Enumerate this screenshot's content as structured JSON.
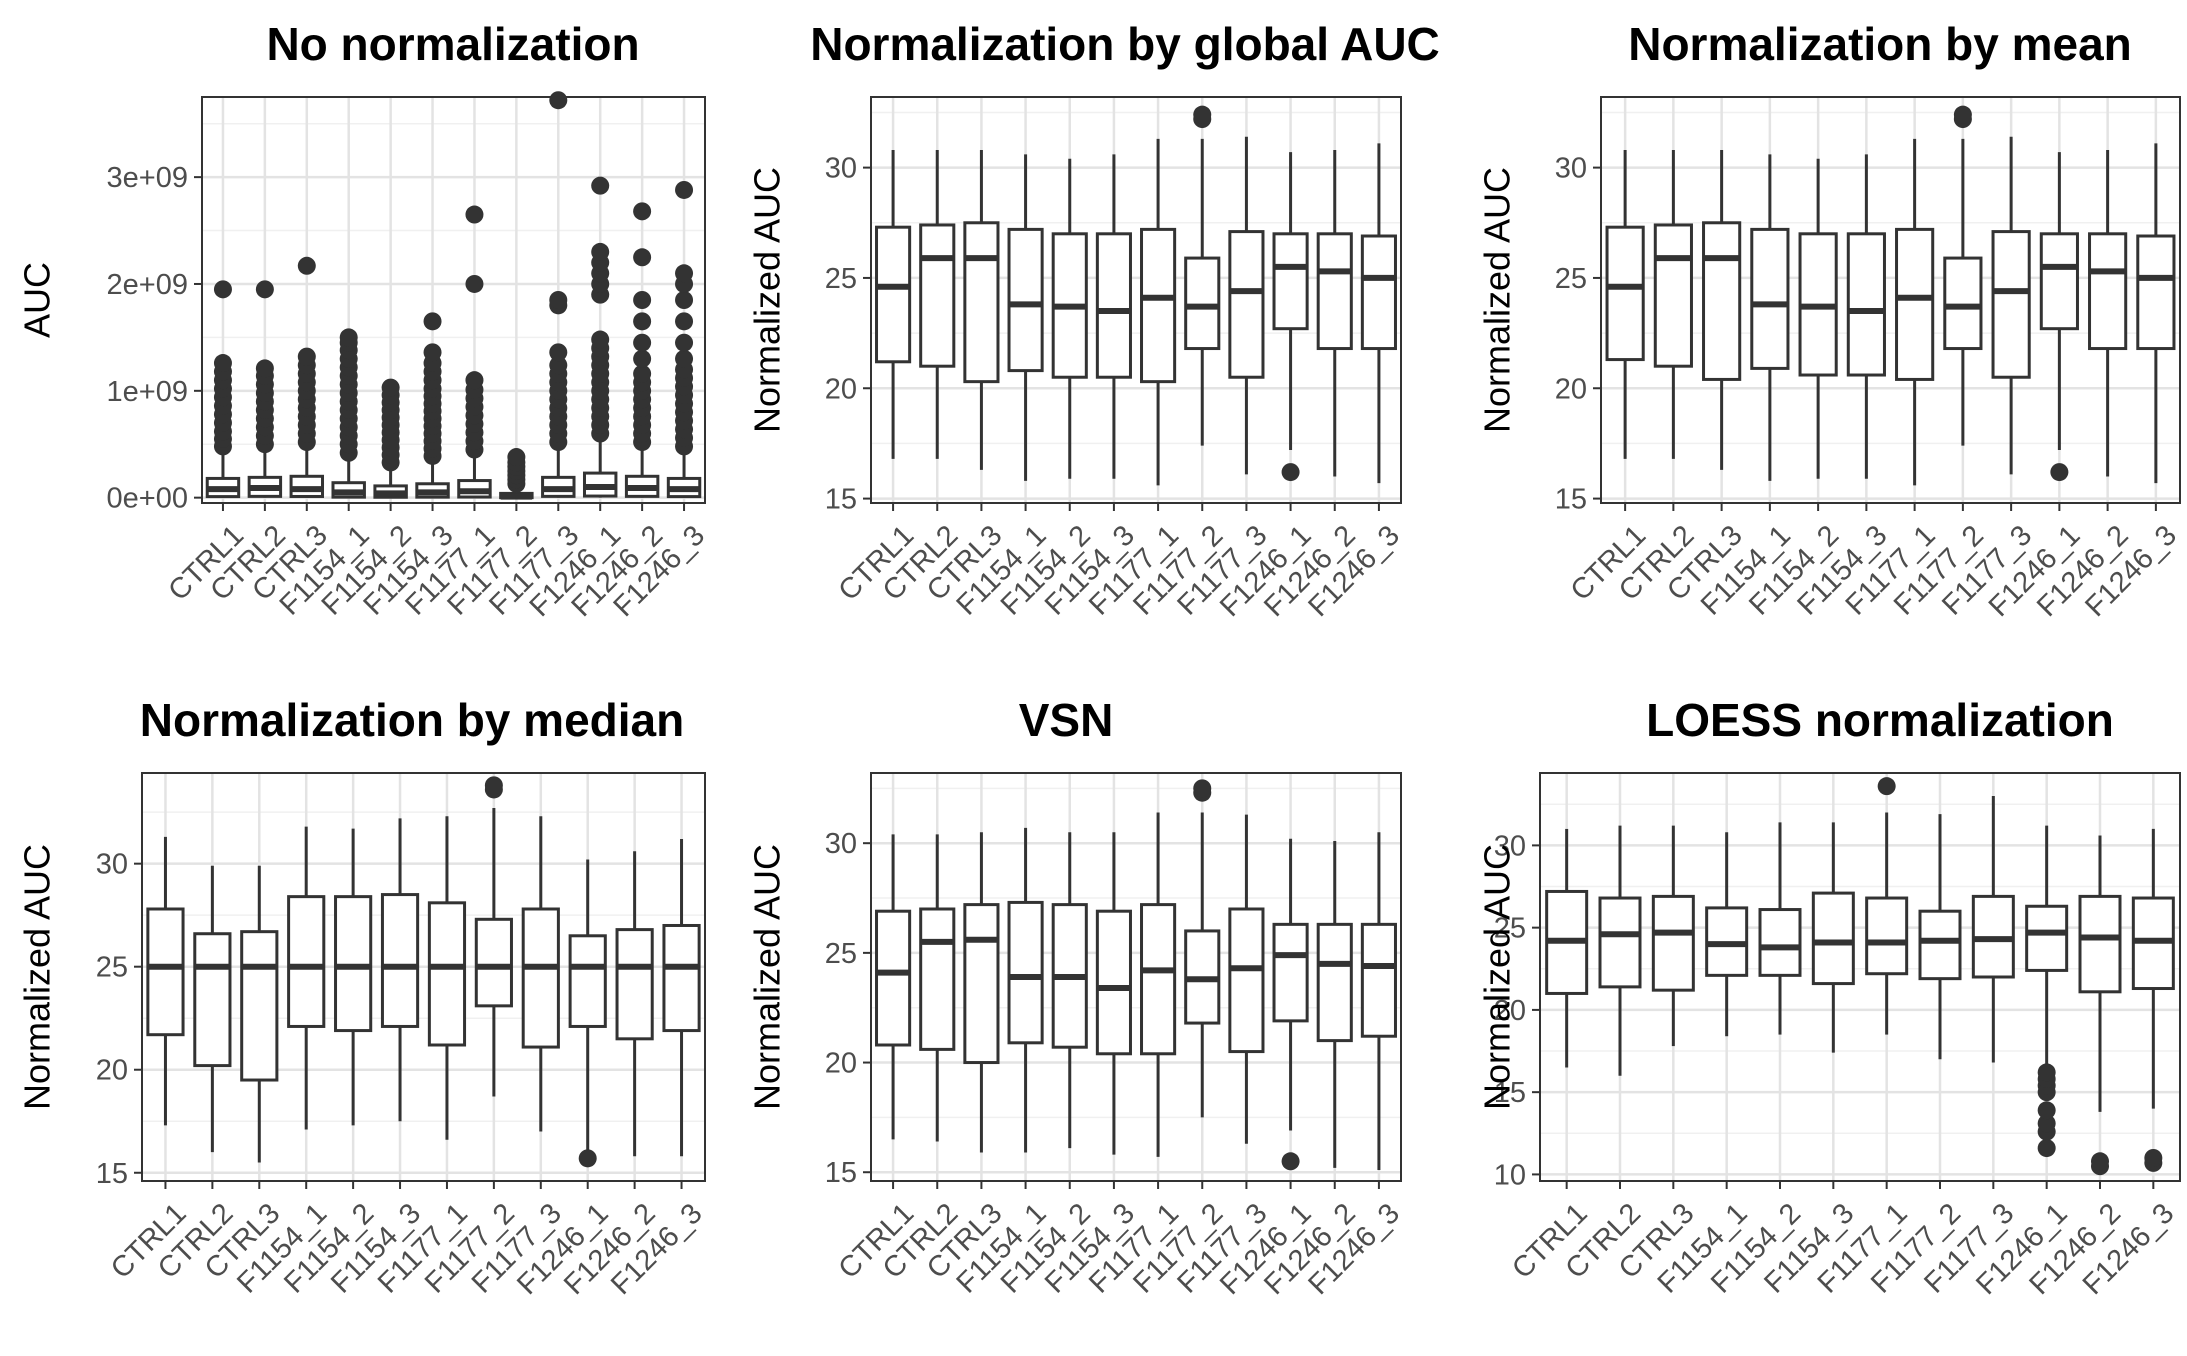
{
  "categories": [
    "CTRL1",
    "CTRL2",
    "CTRL3",
    "F1154_1",
    "F1154_2",
    "F1154_3",
    "F1177_1",
    "F1177_2",
    "F1177_3",
    "F1246_1",
    "F1246_2",
    "F1246_3"
  ],
  "chart_data": [
    {
      "type": "boxplot",
      "title": "No normalization",
      "ylabel": "AUC",
      "ylim": [
        -50000000,
        3750000000
      ],
      "yticks": [
        0,
        1000000000,
        2000000000,
        3000000000
      ],
      "ytick_labels": [
        "0e+00",
        "1e+09",
        "2e+09",
        "3e+09"
      ],
      "boxes": [
        {
          "low": 0,
          "q1": 10000000,
          "median": 80000000,
          "q3": 180000000,
          "high": 420000000,
          "outliers": [
            480000000,
            550000000,
            620000000,
            700000000,
            780000000,
            860000000,
            940000000,
            1020000000,
            1100000000,
            1180000000,
            1260000000,
            1950000000
          ]
        },
        {
          "low": 0,
          "q1": 12000000,
          "median": 90000000,
          "q3": 190000000,
          "high": 440000000,
          "outliers": [
            500000000,
            580000000,
            660000000,
            740000000,
            820000000,
            900000000,
            980000000,
            1060000000,
            1140000000,
            1210000000,
            1950000000
          ]
        },
        {
          "low": 0,
          "q1": 11000000,
          "median": 80000000,
          "q3": 200000000,
          "high": 450000000,
          "outliers": [
            520000000,
            600000000,
            680000000,
            760000000,
            840000000,
            920000000,
            1000000000,
            1080000000,
            1160000000,
            1240000000,
            1320000000,
            2170000000
          ]
        },
        {
          "low": 0,
          "q1": 5000000,
          "median": 50000000,
          "q3": 140000000,
          "high": 360000000,
          "outliers": [
            420000000,
            500000000,
            580000000,
            660000000,
            740000000,
            820000000,
            900000000,
            980000000,
            1060000000,
            1140000000,
            1220000000,
            1300000000,
            1380000000,
            1450000000,
            1500000000
          ]
        },
        {
          "low": 0,
          "q1": 4000000,
          "median": 40000000,
          "q3": 110000000,
          "high": 280000000,
          "outliers": [
            330000000,
            400000000,
            470000000,
            540000000,
            610000000,
            680000000,
            750000000,
            820000000,
            890000000,
            960000000,
            1030000000
          ]
        },
        {
          "low": 0,
          "q1": 5000000,
          "median": 50000000,
          "q3": 130000000,
          "high": 330000000,
          "outliers": [
            390000000,
            460000000,
            530000000,
            600000000,
            670000000,
            740000000,
            810000000,
            880000000,
            950000000,
            1020000000,
            1100000000,
            1180000000,
            1260000000,
            1360000000,
            1650000000
          ]
        },
        {
          "low": 0,
          "q1": 6000000,
          "median": 60000000,
          "q3": 160000000,
          "high": 390000000,
          "outliers": [
            450000000,
            530000000,
            610000000,
            690000000,
            770000000,
            850000000,
            930000000,
            1010000000,
            1100000000,
            2000000000,
            2650000000
          ]
        },
        {
          "low": 0,
          "q1": 0,
          "median": 10000000,
          "q3": 40000000,
          "high": 100000000,
          "outliers": [
            130000000,
            170000000,
            210000000,
            250000000,
            290000000,
            330000000,
            380000000
          ]
        },
        {
          "low": 0,
          "q1": 12000000,
          "median": 80000000,
          "q3": 190000000,
          "high": 450000000,
          "outliers": [
            520000000,
            600000000,
            680000000,
            760000000,
            840000000,
            920000000,
            1000000000,
            1080000000,
            1160000000,
            1240000000,
            1360000000,
            1800000000,
            1850000000,
            3720000000
          ]
        },
        {
          "low": 0,
          "q1": 15000000,
          "median": 100000000,
          "q3": 230000000,
          "high": 540000000,
          "outliers": [
            600000000,
            680000000,
            760000000,
            840000000,
            920000000,
            1000000000,
            1080000000,
            1160000000,
            1240000000,
            1320000000,
            1400000000,
            1480000000,
            1900000000,
            2000000000,
            2100000000,
            2200000000,
            2300000000,
            2920000000
          ]
        },
        {
          "low": 0,
          "q1": 12000000,
          "median": 90000000,
          "q3": 200000000,
          "high": 460000000,
          "outliers": [
            520000000,
            600000000,
            680000000,
            760000000,
            840000000,
            920000000,
            1000000000,
            1080000000,
            1160000000,
            1300000000,
            1450000000,
            1650000000,
            1850000000,
            2250000000,
            2680000000
          ]
        },
        {
          "low": 0,
          "q1": 10000000,
          "median": 80000000,
          "q3": 180000000,
          "high": 420000000,
          "outliers": [
            480000000,
            560000000,
            640000000,
            720000000,
            800000000,
            880000000,
            960000000,
            1040000000,
            1120000000,
            1200000000,
            1300000000,
            1450000000,
            1650000000,
            1850000000,
            2000000000,
            2100000000,
            2880000000
          ]
        }
      ]
    },
    {
      "type": "boxplot",
      "title": "Normalization by global AUC",
      "ylabel": "Normalized AUC",
      "ylim": [
        14.8,
        33.2
      ],
      "yticks": [
        15,
        20,
        25,
        30
      ],
      "ytick_labels": [
        "15",
        "20",
        "25",
        "30"
      ],
      "boxes": [
        {
          "low": 16.8,
          "q1": 21.2,
          "median": 24.6,
          "q3": 27.3,
          "high": 30.8,
          "outliers": []
        },
        {
          "low": 16.8,
          "q1": 21.0,
          "median": 25.9,
          "q3": 27.4,
          "high": 30.8,
          "outliers": []
        },
        {
          "low": 16.3,
          "q1": 20.3,
          "median": 25.9,
          "q3": 27.5,
          "high": 30.8,
          "outliers": []
        },
        {
          "low": 15.8,
          "q1": 20.8,
          "median": 23.8,
          "q3": 27.2,
          "high": 30.6,
          "outliers": []
        },
        {
          "low": 15.9,
          "q1": 20.5,
          "median": 23.7,
          "q3": 27.0,
          "high": 30.4,
          "outliers": []
        },
        {
          "low": 15.9,
          "q1": 20.5,
          "median": 23.5,
          "q3": 27.0,
          "high": 30.6,
          "outliers": []
        },
        {
          "low": 15.6,
          "q1": 20.3,
          "median": 24.1,
          "q3": 27.2,
          "high": 31.3,
          "outliers": []
        },
        {
          "low": 17.4,
          "q1": 21.8,
          "median": 23.7,
          "q3": 25.9,
          "high": 31.3,
          "outliers": [
            32.2,
            32.4
          ]
        },
        {
          "low": 16.1,
          "q1": 20.5,
          "median": 24.4,
          "q3": 27.1,
          "high": 31.4,
          "outliers": []
        },
        {
          "low": 17.2,
          "q1": 22.7,
          "median": 25.5,
          "q3": 27.0,
          "high": 30.7,
          "outliers": [
            16.2
          ]
        },
        {
          "low": 16.0,
          "q1": 21.8,
          "median": 25.3,
          "q3": 27.0,
          "high": 30.8,
          "outliers": []
        },
        {
          "low": 15.7,
          "q1": 21.8,
          "median": 25.0,
          "q3": 26.9,
          "high": 31.1,
          "outliers": []
        }
      ]
    },
    {
      "type": "boxplot",
      "title": "Normalization by mean",
      "ylabel": "Normalized AUC",
      "ylim": [
        14.8,
        33.2
      ],
      "yticks": [
        15,
        20,
        25,
        30
      ],
      "ytick_labels": [
        "15",
        "20",
        "25",
        "30"
      ],
      "boxes": [
        {
          "low": 16.8,
          "q1": 21.3,
          "median": 24.6,
          "q3": 27.3,
          "high": 30.8,
          "outliers": []
        },
        {
          "low": 16.8,
          "q1": 21.0,
          "median": 25.9,
          "q3": 27.4,
          "high": 30.8,
          "outliers": []
        },
        {
          "low": 16.3,
          "q1": 20.4,
          "median": 25.9,
          "q3": 27.5,
          "high": 30.8,
          "outliers": []
        },
        {
          "low": 15.8,
          "q1": 20.9,
          "median": 23.8,
          "q3": 27.2,
          "high": 30.6,
          "outliers": []
        },
        {
          "low": 15.9,
          "q1": 20.6,
          "median": 23.7,
          "q3": 27.0,
          "high": 30.4,
          "outliers": []
        },
        {
          "low": 15.9,
          "q1": 20.6,
          "median": 23.5,
          "q3": 27.0,
          "high": 30.6,
          "outliers": []
        },
        {
          "low": 15.6,
          "q1": 20.4,
          "median": 24.1,
          "q3": 27.2,
          "high": 31.3,
          "outliers": []
        },
        {
          "low": 17.4,
          "q1": 21.8,
          "median": 23.7,
          "q3": 25.9,
          "high": 31.3,
          "outliers": [
            32.2,
            32.4
          ]
        },
        {
          "low": 16.1,
          "q1": 20.5,
          "median": 24.4,
          "q3": 27.1,
          "high": 31.4,
          "outliers": []
        },
        {
          "low": 17.2,
          "q1": 22.7,
          "median": 25.5,
          "q3": 27.0,
          "high": 30.7,
          "outliers": [
            16.2
          ]
        },
        {
          "low": 16.0,
          "q1": 21.8,
          "median": 25.3,
          "q3": 27.0,
          "high": 30.8,
          "outliers": []
        },
        {
          "low": 15.7,
          "q1": 21.8,
          "median": 25.0,
          "q3": 26.9,
          "high": 31.1,
          "outliers": []
        }
      ]
    },
    {
      "type": "boxplot",
      "title": "Normalization by median",
      "ylabel": "Normalized AUC",
      "ylim": [
        14.6,
        34.4
      ],
      "yticks": [
        15,
        20,
        25,
        30
      ],
      "ytick_labels": [
        "15",
        "20",
        "25",
        "30"
      ],
      "boxes": [
        {
          "low": 17.3,
          "q1": 21.7,
          "median": 25.0,
          "q3": 27.8,
          "high": 31.3,
          "outliers": []
        },
        {
          "low": 16.0,
          "q1": 20.2,
          "median": 25.0,
          "q3": 26.6,
          "high": 29.9,
          "outliers": []
        },
        {
          "low": 15.5,
          "q1": 19.5,
          "median": 25.0,
          "q3": 26.7,
          "high": 29.9,
          "outliers": []
        },
        {
          "low": 17.1,
          "q1": 22.1,
          "median": 25.0,
          "q3": 28.4,
          "high": 31.8,
          "outliers": []
        },
        {
          "low": 17.3,
          "q1": 21.9,
          "median": 25.0,
          "q3": 28.4,
          "high": 31.7,
          "outliers": []
        },
        {
          "low": 17.5,
          "q1": 22.1,
          "median": 25.0,
          "q3": 28.5,
          "high": 32.2,
          "outliers": []
        },
        {
          "low": 16.6,
          "q1": 21.2,
          "median": 25.0,
          "q3": 28.1,
          "high": 32.3,
          "outliers": []
        },
        {
          "low": 18.7,
          "q1": 23.1,
          "median": 25.0,
          "q3": 27.3,
          "high": 32.7,
          "outliers": [
            33.6,
            33.8
          ]
        },
        {
          "low": 17.0,
          "q1": 21.1,
          "median": 25.0,
          "q3": 27.8,
          "high": 32.3,
          "outliers": []
        },
        {
          "low": 16.0,
          "q1": 22.1,
          "median": 25.0,
          "q3": 26.5,
          "high": 30.2,
          "outliers": [
            15.7
          ]
        },
        {
          "low": 15.8,
          "q1": 21.5,
          "median": 25.0,
          "q3": 26.8,
          "high": 30.6,
          "outliers": []
        },
        {
          "low": 15.8,
          "q1": 21.9,
          "median": 25.0,
          "q3": 27.0,
          "high": 31.2,
          "outliers": []
        }
      ]
    },
    {
      "type": "boxplot",
      "title": "VSN",
      "ylabel": "Normalized AUC",
      "ylim": [
        14.6,
        33.2
      ],
      "yticks": [
        15,
        20,
        25,
        30
      ],
      "ytick_labels": [
        "15",
        "20",
        "25",
        "30"
      ],
      "boxes": [
        {
          "low": 16.5,
          "q1": 20.8,
          "median": 24.1,
          "q3": 26.9,
          "high": 30.4,
          "outliers": []
        },
        {
          "low": 16.4,
          "q1": 20.6,
          "median": 25.5,
          "q3": 27.0,
          "high": 30.4,
          "outliers": []
        },
        {
          "low": 15.9,
          "q1": 20.0,
          "median": 25.6,
          "q3": 27.2,
          "high": 30.5,
          "outliers": []
        },
        {
          "low": 15.9,
          "q1": 20.9,
          "median": 23.9,
          "q3": 27.3,
          "high": 30.7,
          "outliers": []
        },
        {
          "low": 16.1,
          "q1": 20.7,
          "median": 23.9,
          "q3": 27.2,
          "high": 30.5,
          "outliers": []
        },
        {
          "low": 15.8,
          "q1": 20.4,
          "median": 23.4,
          "q3": 26.9,
          "high": 30.5,
          "outliers": []
        },
        {
          "low": 15.7,
          "q1": 20.4,
          "median": 24.2,
          "q3": 27.2,
          "high": 31.4,
          "outliers": []
        },
        {
          "low": 17.5,
          "q1": 21.8,
          "median": 23.8,
          "q3": 26.0,
          "high": 31.4,
          "outliers": [
            32.3,
            32.5
          ]
        },
        {
          "low": 16.3,
          "q1": 20.5,
          "median": 24.3,
          "q3": 27.0,
          "high": 31.3,
          "outliers": []
        },
        {
          "low": 16.9,
          "q1": 21.9,
          "median": 24.9,
          "q3": 26.3,
          "high": 30.2,
          "outliers": [
            15.5
          ]
        },
        {
          "low": 15.2,
          "q1": 21.0,
          "median": 24.5,
          "q3": 26.3,
          "high": 30.1,
          "outliers": []
        },
        {
          "low": 15.1,
          "q1": 21.2,
          "median": 24.4,
          "q3": 26.3,
          "high": 30.5,
          "outliers": []
        }
      ]
    },
    {
      "type": "boxplot",
      "title": "LOESS normalization",
      "ylabel": "Normalized AUC",
      "ylim": [
        9.6,
        34.4
      ],
      "yticks": [
        10,
        15,
        20,
        25,
        30
      ],
      "ytick_labels": [
        "10",
        "15",
        "20",
        "25",
        "30"
      ],
      "boxes": [
        {
          "low": 16.5,
          "q1": 21.0,
          "median": 24.2,
          "q3": 27.2,
          "high": 31.0,
          "outliers": []
        },
        {
          "low": 16.0,
          "q1": 21.4,
          "median": 24.6,
          "q3": 26.8,
          "high": 31.2,
          "outliers": []
        },
        {
          "low": 17.8,
          "q1": 21.2,
          "median": 24.7,
          "q3": 26.9,
          "high": 31.2,
          "outliers": []
        },
        {
          "low": 18.4,
          "q1": 22.1,
          "median": 24.0,
          "q3": 26.2,
          "high": 30.8,
          "outliers": []
        },
        {
          "low": 18.5,
          "q1": 22.1,
          "median": 23.8,
          "q3": 26.1,
          "high": 31.4,
          "outliers": []
        },
        {
          "low": 17.4,
          "q1": 21.6,
          "median": 24.1,
          "q3": 27.1,
          "high": 31.4,
          "outliers": []
        },
        {
          "low": 18.5,
          "q1": 22.2,
          "median": 24.1,
          "q3": 26.8,
          "high": 32.0,
          "outliers": [
            33.6
          ]
        },
        {
          "low": 17.0,
          "q1": 21.9,
          "median": 24.2,
          "q3": 26.0,
          "high": 31.9,
          "outliers": []
        },
        {
          "low": 16.8,
          "q1": 22.0,
          "median": 24.3,
          "q3": 26.9,
          "high": 33.0,
          "outliers": []
        },
        {
          "low": 16.5,
          "q1": 22.4,
          "median": 24.7,
          "q3": 26.3,
          "high": 31.2,
          "outliers": [
            11.6,
            12.6,
            13.1,
            13.9,
            15.0,
            15.4,
            15.8,
            16.2
          ]
        },
        {
          "low": 13.8,
          "q1": 21.1,
          "median": 24.4,
          "q3": 26.9,
          "high": 30.6,
          "outliers": [
            10.5,
            10.8
          ]
        },
        {
          "low": 14.0,
          "q1": 21.3,
          "median": 24.2,
          "q3": 26.8,
          "high": 31.0,
          "outliers": [
            10.7,
            11.0
          ]
        }
      ]
    }
  ]
}
